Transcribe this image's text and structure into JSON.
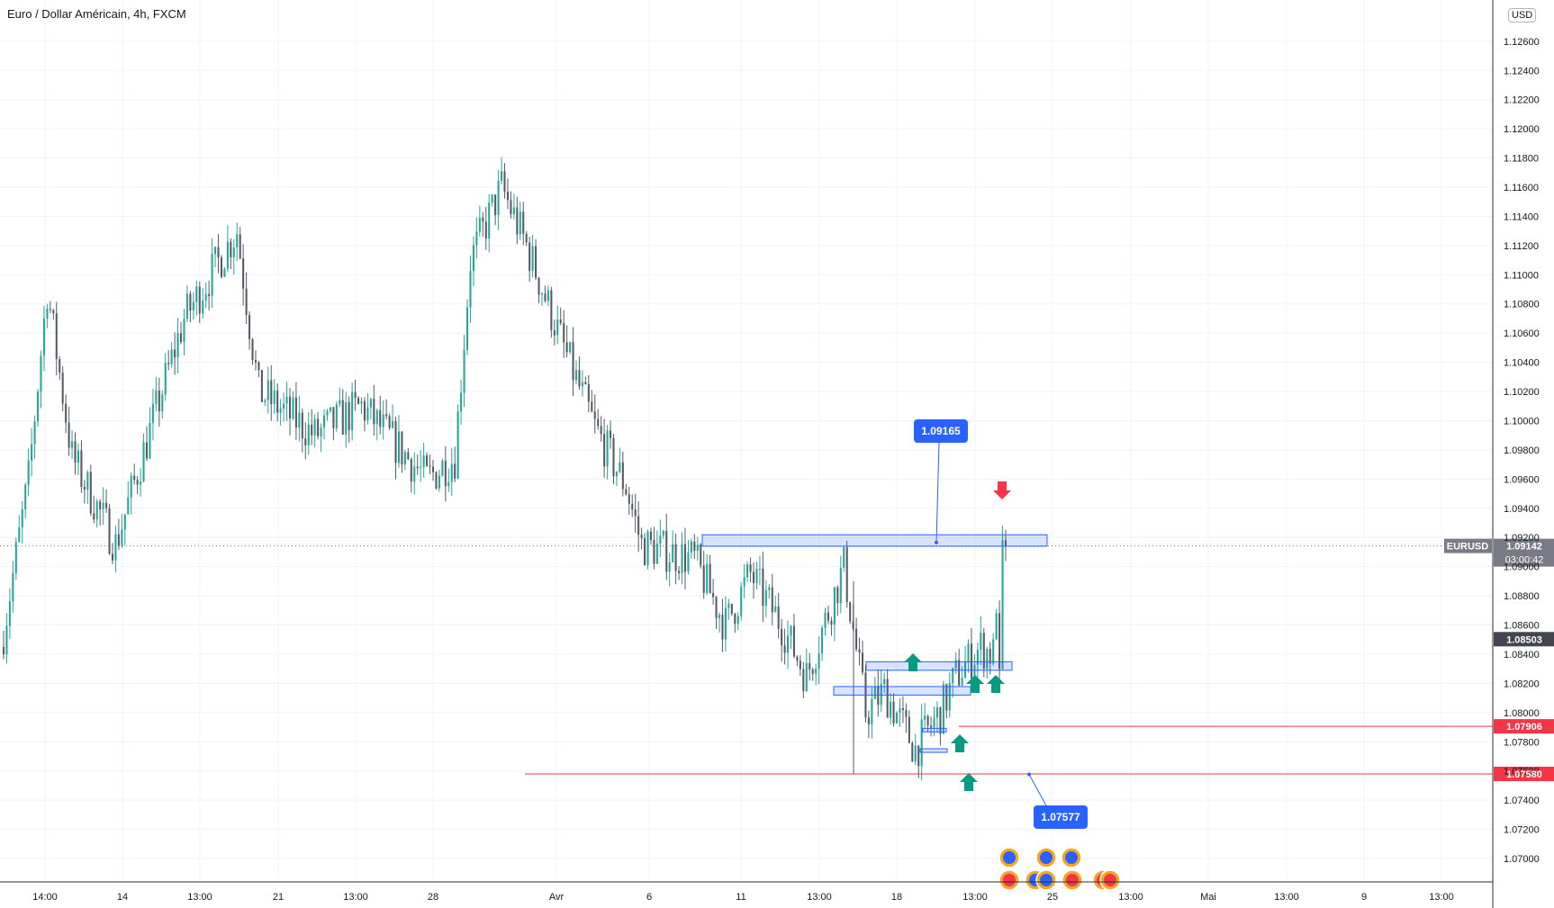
{
  "header": {
    "title": "Euro / Dollar Américain, 4h, FXCM",
    "currency_button": "USD"
  },
  "price_axis": {
    "ticks": [
      "1.12600",
      "1.12400",
      "1.12200",
      "1.12000",
      "1.11800",
      "1.11600",
      "1.11400",
      "1.11200",
      "1.11000",
      "1.10800",
      "1.10600",
      "1.10400",
      "1.10200",
      "1.10000",
      "1.09800",
      "1.09600",
      "1.09400",
      "1.09200",
      "1.09000",
      "1.08800",
      "1.08600",
      "1.08400",
      "1.08200",
      "1.08000",
      "1.07800",
      "1.07600",
      "1.07400",
      "1.07200",
      "1.07000"
    ],
    "last_price": {
      "symbol": "EURUSD",
      "price": "1.09142",
      "countdown": "03:00:42",
      "color": "#787b86"
    },
    "level_labels": [
      {
        "price": "1.08503",
        "color": "#434651"
      },
      {
        "price": "1.07906",
        "color": "#f23645"
      },
      {
        "price": "1.07580",
        "color": "#f23645"
      }
    ]
  },
  "time_axis": {
    "labels": [
      "14:00",
      "14",
      "13:00",
      "21",
      "13:00",
      "28",
      "Avr",
      "6",
      "11",
      "13:00",
      "18",
      "13:00",
      "25",
      "13:00",
      "Mai",
      "13:00",
      "9",
      "13:00"
    ]
  },
  "annotations": {
    "callouts": [
      "1.09165",
      "1.07577"
    ],
    "up_arrow_color": "#089981",
    "down_arrow_color": "#f23645",
    "box_color": "#2962ff"
  },
  "chart_data": {
    "type": "candlestick",
    "symbol": "EURUSD",
    "interval": "4h",
    "up_color": "#26a69a",
    "down_color": "#555b66",
    "ylim": [
      1.0684,
      1.1279
    ],
    "anchor_points": [
      {
        "close": 1.0855,
        "index": 0
      },
      {
        "close": 1.096,
        "index": 8
      },
      {
        "close": 1.109,
        "index": 14
      },
      {
        "close": 1.0975,
        "index": 22
      },
      {
        "close": 1.0915,
        "index": 36
      },
      {
        "close": 1.1,
        "index": 48
      },
      {
        "close": 1.107,
        "index": 58
      },
      {
        "close": 1.113,
        "index": 75
      },
      {
        "close": 1.102,
        "index": 82
      },
      {
        "close": 1.099,
        "index": 100
      },
      {
        "close": 1.101,
        "index": 115
      },
      {
        "close": 1.096,
        "index": 136
      },
      {
        "close": 1.0975,
        "index": 145
      },
      {
        "close": 1.111,
        "index": 150
      },
      {
        "close": 1.116,
        "index": 160
      },
      {
        "close": 1.112,
        "index": 168
      },
      {
        "close": 1.105,
        "index": 180
      },
      {
        "close": 1.0995,
        "index": 190
      },
      {
        "close": 1.0955,
        "index": 200
      },
      {
        "close": 1.0915,
        "index": 205
      },
      {
        "close": 1.0905,
        "index": 222
      },
      {
        "close": 1.086,
        "index": 232
      },
      {
        "close": 1.0895,
        "index": 240
      },
      {
        "close": 1.086,
        "index": 250
      },
      {
        "close": 1.0825,
        "index": 258
      },
      {
        "close": 1.09,
        "index": 270
      },
      {
        "close": 1.08,
        "index": 277
      },
      {
        "close": 1.0815,
        "index": 283
      },
      {
        "close": 1.0775,
        "index": 293
      },
      {
        "close": 1.08,
        "index": 301
      },
      {
        "close": 1.0825,
        "index": 306
      },
      {
        "close": 1.0845,
        "index": 314
      },
      {
        "close": 1.084,
        "index": 318
      },
      {
        "close": 1.0916,
        "index": 320
      },
      {
        "close": 1.0914,
        "index": 322
      }
    ],
    "last_close": 1.09142,
    "levels": {
      "resistance_zone": [
        1.0914,
        1.092
      ],
      "support_zone_1": [
        1.0829,
        1.0833
      ],
      "support_zone_2": [
        1.0812,
        1.0816
      ],
      "level_1": 1.07906,
      "level_2": 1.0758
    }
  }
}
